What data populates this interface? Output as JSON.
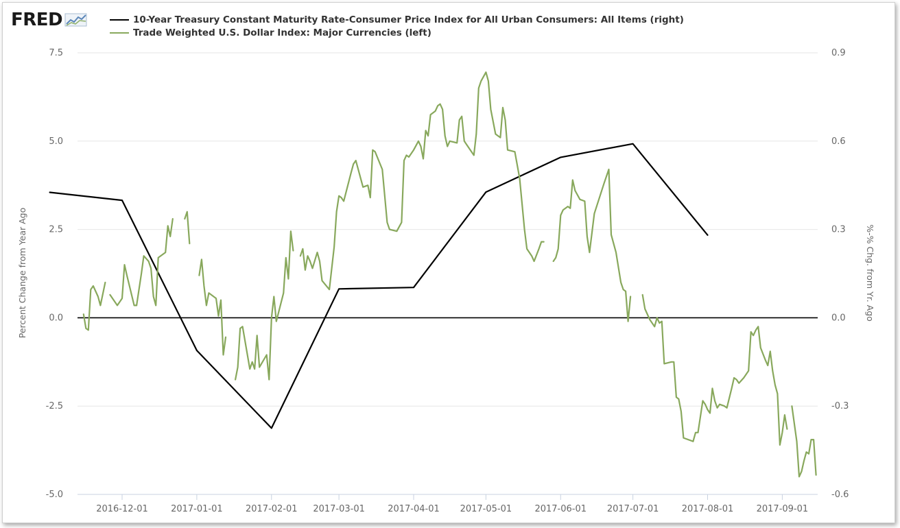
{
  "logo": {
    "text": "FRED",
    "icon": "line-chart-icon"
  },
  "chart_data": {
    "type": "line",
    "legend": [
      {
        "label": "10-Year Treasury Constant Maturity Rate-Consumer Price Index for All Urban Consumers: All Items (right)",
        "color": "#000000"
      },
      {
        "label": "Trade Weighted U.S. Dollar Index: Major Currencies (left)",
        "color": "#88a85c"
      }
    ],
    "x_ticks": [
      "2016-12-01",
      "2017-01-01",
      "2017-02-01",
      "2017-03-01",
      "2017-04-01",
      "2017-05-01",
      "2017-06-01",
      "2017-07-01",
      "2017-08-01",
      "2017-09-01"
    ],
    "x_range": [
      "2016-11-13",
      "2017-09-15"
    ],
    "y_left": {
      "label": "Percent Change from Year Ago",
      "ticks": [
        "7.5",
        "5.0",
        "2.5",
        "0.0",
        "-2.5",
        "-5.0"
      ],
      "range": [
        -5,
        7.5
      ]
    },
    "y_right": {
      "label": "%-% Chg. from Yr. Ago",
      "ticks": [
        "0.9",
        "0.6",
        "0.3",
        "0.0",
        "-0.3",
        "-0.6"
      ],
      "range": [
        -0.6,
        0.9
      ]
    },
    "grid": true,
    "series": [
      {
        "name": "10-Year Treasury Constant Maturity Rate-Consumer Price Index for All Urban Consumers: All Items (right)",
        "axis": "right",
        "color": "#000000",
        "points": [
          [
            "2016-11-01",
            0.426
          ],
          [
            "2016-12-01",
            0.399
          ],
          [
            "2017-01-01",
            -0.111
          ],
          [
            "2017-02-01",
            -0.375
          ],
          [
            "2017-03-01",
            0.098
          ],
          [
            "2017-04-01",
            0.103
          ],
          [
            "2017-05-01",
            0.427
          ],
          [
            "2017-06-01",
            0.545
          ],
          [
            "2017-07-01",
            0.591
          ],
          [
            "2017-08-01",
            0.281
          ]
        ]
      },
      {
        "name": "Trade Weighted U.S. Dollar Index: Major Currencies (left)",
        "axis": "left",
        "color": "#88a85c",
        "segments": [
          [
            [
              "2016-11-15",
              0.1
            ],
            [
              "2016-11-16",
              -0.3
            ],
            [
              "2016-11-17",
              -0.35
            ],
            [
              "2016-11-18",
              0.8
            ],
            [
              "2016-11-19",
              0.9
            ],
            [
              "2016-11-21",
              0.6
            ],
            [
              "2016-11-22",
              0.35
            ],
            [
              "2016-11-24",
              1.0
            ]
          ],
          [
            [
              "2016-11-26",
              0.65
            ],
            [
              "2016-11-29",
              0.35
            ],
            [
              "2016-12-01",
              0.55
            ],
            [
              "2016-12-02",
              1.5
            ],
            [
              "2016-12-03",
              1.2
            ],
            [
              "2016-12-06",
              0.35
            ],
            [
              "2016-12-07",
              0.35
            ],
            [
              "2016-12-09",
              1.25
            ],
            [
              "2016-12-10",
              1.75
            ],
            [
              "2016-12-12",
              1.6
            ],
            [
              "2016-12-13",
              1.4
            ],
            [
              "2016-12-14",
              0.6
            ],
            [
              "2016-12-15",
              0.35
            ],
            [
              "2016-12-16",
              1.7
            ],
            [
              "2016-12-19",
              1.85
            ],
            [
              "2016-12-20",
              2.6
            ],
            [
              "2016-12-21",
              2.3
            ],
            [
              "2016-12-22",
              2.8
            ]
          ],
          [
            [
              "2016-12-27",
              2.8
            ],
            [
              "2016-12-28",
              3.0
            ],
            [
              "2016-12-29",
              2.1
            ]
          ],
          [
            [
              "2017-01-02",
              1.2
            ],
            [
              "2017-01-03",
              1.65
            ],
            [
              "2017-01-04",
              0.9
            ],
            [
              "2017-01-05",
              0.35
            ],
            [
              "2017-01-06",
              0.7
            ],
            [
              "2017-01-09",
              0.55
            ],
            [
              "2017-01-10",
              0.05
            ],
            [
              "2017-01-11",
              0.5
            ],
            [
              "2017-01-12",
              -1.05
            ],
            [
              "2017-01-13",
              -0.55
            ]
          ],
          [
            [
              "2017-01-17",
              -1.75
            ],
            [
              "2017-01-18",
              -1.4
            ],
            [
              "2017-01-19",
              -0.3
            ],
            [
              "2017-01-20",
              -0.25
            ],
            [
              "2017-01-23",
              -1.45
            ],
            [
              "2017-01-24",
              -1.25
            ],
            [
              "2017-01-25",
              -1.45
            ],
            [
              "2017-01-26",
              -0.5
            ],
            [
              "2017-01-27",
              -1.4
            ],
            [
              "2017-01-30",
              -1.05
            ],
            [
              "2017-01-31",
              -1.75
            ],
            [
              "2017-02-01",
              0.0
            ],
            [
              "2017-02-02",
              0.6
            ],
            [
              "2017-02-03",
              -0.1
            ],
            [
              "2017-02-06",
              0.7
            ],
            [
              "2017-02-07",
              1.7
            ],
            [
              "2017-02-08",
              1.1
            ],
            [
              "2017-02-09",
              2.45
            ],
            [
              "2017-02-10",
              1.9
            ]
          ],
          [
            [
              "2017-02-13",
              1.75
            ],
            [
              "2017-02-14",
              1.95
            ],
            [
              "2017-02-15",
              1.35
            ],
            [
              "2017-02-16",
              1.75
            ],
            [
              "2017-02-17",
              1.6
            ],
            [
              "2017-02-18",
              1.4
            ],
            [
              "2017-02-20",
              1.85
            ],
            [
              "2017-02-21",
              1.6
            ],
            [
              "2017-02-22",
              1.05
            ],
            [
              "2017-02-25",
              0.8
            ],
            [
              "2017-02-27",
              2.0
            ],
            [
              "2017-02-28",
              3.0
            ],
            [
              "2017-03-01",
              3.45
            ],
            [
              "2017-03-02",
              3.4
            ],
            [
              "2017-03-03",
              3.3
            ],
            [
              "2017-03-06",
              4.1
            ],
            [
              "2017-03-07",
              4.35
            ],
            [
              "2017-03-08",
              4.45
            ],
            [
              "2017-03-09",
              4.2
            ],
            [
              "2017-03-10",
              3.95
            ],
            [
              "2017-03-11",
              3.7
            ],
            [
              "2017-03-13",
              3.75
            ],
            [
              "2017-03-14",
              3.4
            ],
            [
              "2017-03-15",
              4.75
            ],
            [
              "2017-03-16",
              4.7
            ],
            [
              "2017-03-19",
              4.2
            ],
            [
              "2017-03-21",
              2.7
            ],
            [
              "2017-03-22",
              2.5
            ],
            [
              "2017-03-25",
              2.45
            ],
            [
              "2017-03-27",
              2.7
            ],
            [
              "2017-03-28",
              4.45
            ],
            [
              "2017-03-29",
              4.6
            ],
            [
              "2017-03-30",
              4.55
            ],
            [
              "2017-04-01",
              4.75
            ],
            [
              "2017-04-03",
              5.0
            ],
            [
              "2017-04-04",
              4.85
            ],
            [
              "2017-04-05",
              4.5
            ],
            [
              "2017-04-06",
              5.3
            ],
            [
              "2017-04-07",
              5.15
            ],
            [
              "2017-04-08",
              5.75
            ],
            [
              "2017-04-10",
              5.85
            ],
            [
              "2017-04-11",
              6.0
            ],
            [
              "2017-04-12",
              6.05
            ],
            [
              "2017-04-13",
              5.9
            ],
            [
              "2017-04-14",
              5.15
            ],
            [
              "2017-04-15",
              4.85
            ],
            [
              "2017-04-16",
              5.0
            ],
            [
              "2017-04-19",
              4.95
            ],
            [
              "2017-04-20",
              5.6
            ],
            [
              "2017-04-21",
              5.7
            ],
            [
              "2017-04-22",
              5.0
            ],
            [
              "2017-04-23",
              4.9
            ],
            [
              "2017-04-26",
              4.6
            ],
            [
              "2017-04-27",
              5.2
            ],
            [
              "2017-04-28",
              6.5
            ],
            [
              "2017-04-29",
              6.7
            ],
            [
              "2017-05-01",
              6.95
            ],
            [
              "2017-05-02",
              6.7
            ],
            [
              "2017-05-03",
              5.9
            ],
            [
              "2017-05-05",
              5.2
            ],
            [
              "2017-05-07",
              5.1
            ],
            [
              "2017-05-08",
              5.95
            ],
            [
              "2017-05-09",
              5.6
            ],
            [
              "2017-05-10",
              4.75
            ],
            [
              "2017-05-13",
              4.7
            ],
            [
              "2017-05-15",
              3.95
            ],
            [
              "2017-05-17",
              2.5
            ],
            [
              "2017-05-18",
              1.95
            ],
            [
              "2017-05-20",
              1.75
            ],
            [
              "2017-05-21",
              1.6
            ],
            [
              "2017-05-23",
              1.95
            ],
            [
              "2017-05-24",
              2.15
            ],
            [
              "2017-05-25",
              2.15
            ]
          ],
          [
            [
              "2017-05-29",
              1.6
            ],
            [
              "2017-05-30",
              1.7
            ],
            [
              "2017-05-31",
              1.95
            ],
            [
              "2017-06-01",
              2.9
            ],
            [
              "2017-06-02",
              3.05
            ],
            [
              "2017-06-04",
              3.15
            ],
            [
              "2017-06-05",
              3.1
            ],
            [
              "2017-06-06",
              3.9
            ],
            [
              "2017-06-07",
              3.6
            ],
            [
              "2017-06-09",
              3.35
            ],
            [
              "2017-06-11",
              3.3
            ],
            [
              "2017-06-12",
              2.3
            ],
            [
              "2017-06-13",
              1.85
            ],
            [
              "2017-06-15",
              2.95
            ],
            [
              "2017-06-19",
              3.8
            ],
            [
              "2017-06-21",
              4.2
            ],
            [
              "2017-06-22",
              2.35
            ],
            [
              "2017-06-24",
              1.85
            ],
            [
              "2017-06-26",
              1.0
            ],
            [
              "2017-06-27",
              0.8
            ],
            [
              "2017-06-28",
              0.75
            ],
            [
              "2017-06-29",
              -0.1
            ],
            [
              "2017-06-30",
              0.6
            ]
          ],
          [
            [
              "2017-07-05",
              0.65
            ],
            [
              "2017-07-06",
              0.25
            ],
            [
              "2017-07-08",
              -0.05
            ],
            [
              "2017-07-10",
              -0.25
            ],
            [
              "2017-07-11",
              0.0
            ],
            [
              "2017-07-12",
              -0.15
            ],
            [
              "2017-07-13",
              -0.1
            ],
            [
              "2017-07-14",
              -1.3
            ],
            [
              "2017-07-17",
              -1.25
            ],
            [
              "2017-07-18",
              -1.25
            ],
            [
              "2017-07-19",
              -2.25
            ],
            [
              "2017-07-20",
              -2.3
            ],
            [
              "2017-07-21",
              -2.65
            ],
            [
              "2017-07-22",
              -3.4
            ],
            [
              "2017-07-26",
              -3.5
            ],
            [
              "2017-07-27",
              -3.25
            ],
            [
              "2017-07-28",
              -3.25
            ],
            [
              "2017-07-29",
              -2.8
            ],
            [
              "2017-07-30",
              -2.35
            ],
            [
              "2017-07-31",
              -2.45
            ],
            [
              "2017-08-01",
              -2.6
            ],
            [
              "2017-08-02",
              -2.7
            ],
            [
              "2017-08-03",
              -2.0
            ],
            [
              "2017-08-04",
              -2.35
            ],
            [
              "2017-08-05",
              -2.55
            ],
            [
              "2017-08-06",
              -2.45
            ],
            [
              "2017-08-08",
              -2.5
            ],
            [
              "2017-08-09",
              -2.55
            ],
            [
              "2017-08-11",
              -2.0
            ],
            [
              "2017-08-12",
              -1.7
            ],
            [
              "2017-08-13",
              -1.75
            ],
            [
              "2017-08-14",
              -1.85
            ],
            [
              "2017-08-16",
              -1.7
            ],
            [
              "2017-08-18",
              -1.5
            ],
            [
              "2017-08-19",
              -0.4
            ],
            [
              "2017-08-20",
              -0.5
            ],
            [
              "2017-08-21",
              -0.35
            ],
            [
              "2017-08-22",
              -0.25
            ],
            [
              "2017-08-23",
              -0.85
            ],
            [
              "2017-08-25",
              -1.2
            ],
            [
              "2017-08-26",
              -1.35
            ],
            [
              "2017-08-27",
              -0.95
            ],
            [
              "2017-08-28",
              -1.5
            ],
            [
              "2017-08-29",
              -1.9
            ],
            [
              "2017-08-30",
              -2.15
            ],
            [
              "2017-08-31",
              -3.6
            ],
            [
              "2017-09-01",
              -3.25
            ],
            [
              "2017-09-02",
              -2.75
            ],
            [
              "2017-09-03",
              -3.15
            ]
          ],
          [
            [
              "2017-09-05",
              -2.5
            ],
            [
              "2017-09-07",
              -3.5
            ],
            [
              "2017-09-08",
              -4.5
            ],
            [
              "2017-09-09",
              -4.35
            ],
            [
              "2017-09-10",
              -4.05
            ],
            [
              "2017-09-11",
              -3.8
            ],
            [
              "2017-09-12",
              -3.85
            ],
            [
              "2017-09-13",
              -3.45
            ],
            [
              "2017-09-14",
              -3.45
            ],
            [
              "2017-09-15",
              -4.45
            ]
          ]
        ]
      }
    ]
  }
}
